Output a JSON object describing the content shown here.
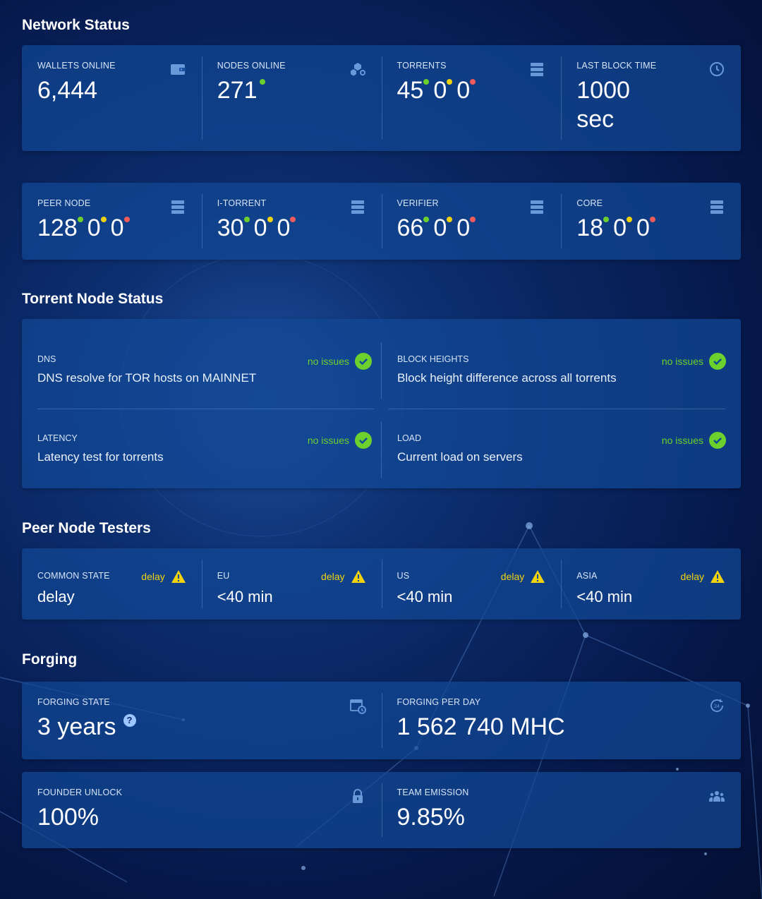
{
  "sections": {
    "network_status": "Network Status",
    "torrent_node_status": "Torrent Node Status",
    "peer_node_testers": "Peer Node Testers",
    "forging": "Forging"
  },
  "network": {
    "wallets_online": {
      "label": "WALLETS ONLINE",
      "value": "6,444",
      "icon": "wallet-icon"
    },
    "nodes_online": {
      "label": "NODES ONLINE",
      "value": "271",
      "icon": "cubes-icon"
    },
    "torrents": {
      "label": "TORRENTS",
      "green": "45",
      "yellow": "0",
      "red": "0",
      "icon": "server-icon"
    },
    "last_block_time": {
      "label": "LAST BLOCK TIME",
      "value": "1000",
      "unit": "sec",
      "icon": "clock-icon"
    }
  },
  "node_types": [
    {
      "label": "PEER NODE",
      "green": "128",
      "yellow": "0",
      "red": "0"
    },
    {
      "label": "I-TORRENT",
      "green": "30",
      "yellow": "0",
      "red": "0"
    },
    {
      "label": "VERIFIER",
      "green": "66",
      "yellow": "0",
      "red": "0"
    },
    {
      "label": "CORE",
      "green": "18",
      "yellow": "0",
      "red": "0"
    }
  ],
  "torrent_status": [
    {
      "label": "DNS",
      "desc": "DNS resolve for TOR hosts on MAINNET",
      "status": "no issues"
    },
    {
      "label": "BLOCK HEIGHTS",
      "desc": "Block height difference across all torrents",
      "status": "no issues"
    },
    {
      "label": "LATENCY",
      "desc": "Latency test for torrents",
      "status": "no issues"
    },
    {
      "label": "LOAD",
      "desc": "Current load on servers",
      "status": "no issues"
    }
  ],
  "testers": [
    {
      "label": "COMMON STATE",
      "value": "delay",
      "status": "delay"
    },
    {
      "label": "EU",
      "value": "<40 min",
      "status": "delay"
    },
    {
      "label": "US",
      "value": "<40 min",
      "status": "delay"
    },
    {
      "label": "ASIA",
      "value": "<40 min",
      "status": "delay"
    }
  ],
  "forging": {
    "state": {
      "label": "FORGING STATE",
      "value": "3 years",
      "help": "?"
    },
    "per_day": {
      "label": "FORGING PER DAY",
      "value": "1 562 740 MHC"
    },
    "founder_unlock": {
      "label": "FOUNDER UNLOCK",
      "value": "100%"
    },
    "team_emission": {
      "label": "TEAM EMISSION",
      "value": "9.85%"
    }
  },
  "colors": {
    "green": "#6cd12c",
    "yellow": "#f0d30e",
    "red": "#ef5a5a",
    "card": "#124896"
  }
}
